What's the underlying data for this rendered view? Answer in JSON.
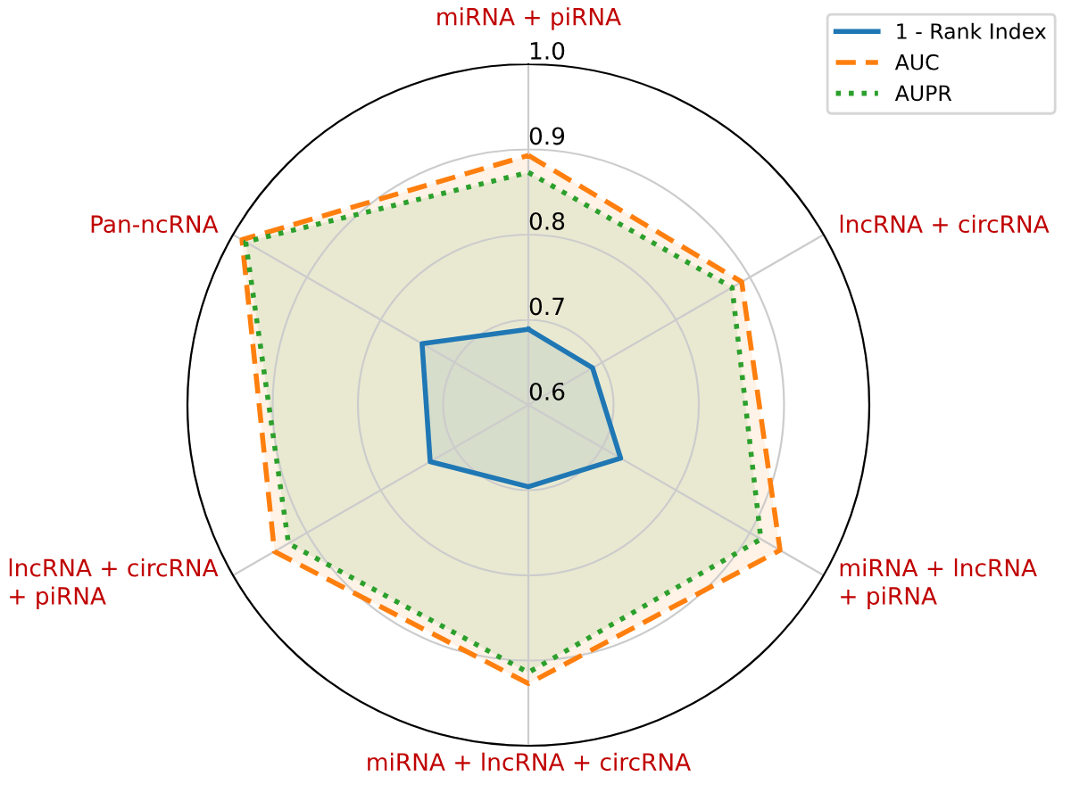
{
  "chart_data": {
    "type": "radar",
    "categories": [
      "miRNA + piRNA",
      "lncRNA + circRNA",
      "miRNA + lncRNA\n+ piRNA",
      "miRNA + lncRNA + circRNA",
      "lncRNA + circRNA\n+ piRNA",
      "Pan-ncRNA"
    ],
    "series": [
      {
        "name": "1 - Rank Index",
        "color": "#1f77b4",
        "line_style": "solid",
        "values": [
          0.689,
          0.687,
          0.725,
          0.696,
          0.733,
          0.744
        ]
      },
      {
        "name": "AUC",
        "color": "#ff7f0e",
        "line_style": "dashed",
        "values": [
          0.893,
          0.889,
          0.941,
          0.927,
          0.944,
          0.988
        ]
      },
      {
        "name": "AUPR",
        "color": "#2ca02c",
        "line_style": "dotted",
        "values": [
          0.873,
          0.876,
          0.915,
          0.914,
          0.925,
          0.983
        ]
      }
    ],
    "ylim": [
      0.6,
      1.0
    ],
    "yticks": [
      0.6,
      0.7,
      0.8,
      0.9,
      {
        "value": 1,
        "label": "1.0"
      }
    ],
    "grid": true,
    "legend": "top right"
  }
}
